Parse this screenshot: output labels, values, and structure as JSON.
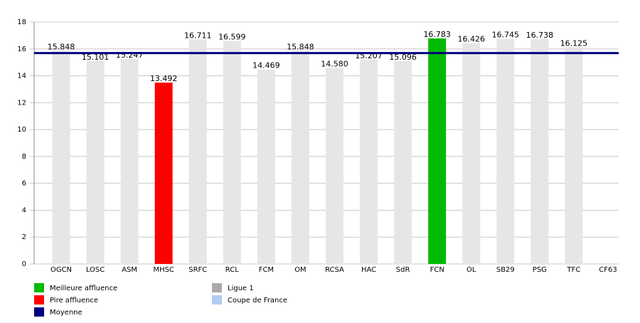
{
  "chart_data": {
    "type": "bar",
    "categories": [
      "OGCN",
      "LOSC",
      "ASM",
      "MHSC",
      "SRFC",
      "RCL",
      "FCM",
      "OM",
      "RCSA",
      "HAC",
      "SdR",
      "FCN",
      "OL",
      "SB29",
      "PSG",
      "TFC",
      "CF63"
    ],
    "values": [
      15.848,
      15.101,
      15.247,
      13.492,
      16.711,
      16.599,
      14.469,
      15.848,
      14.58,
      15.207,
      15.096,
      16.783,
      16.426,
      16.745,
      16.738,
      16.125,
      null
    ],
    "value_labels": [
      "15.848",
      "15.101",
      "15.247",
      "13.492",
      "16.711",
      "16.599",
      "14.469",
      "15.848",
      "14.580",
      "15.207",
      "15.096",
      "16.783",
      "16.426",
      "16.745",
      "16.738",
      "16.125",
      null
    ],
    "colors": [
      "#e6e6e6",
      "#e6e6e6",
      "#e6e6e6",
      "#ff0000",
      "#e6e6e6",
      "#e6e6e6",
      "#e6e6e6",
      "#e6e6e6",
      "#e6e6e6",
      "#e6e6e6",
      "#e6e6e6",
      "#00bb00",
      "#e6e6e6",
      "#e6e6e6",
      "#e6e6e6",
      "#e6e6e6",
      "#e6e6e6"
    ],
    "mean": 15.688,
    "mean_color": "#000080",
    "ylim": [
      0,
      18
    ],
    "yticks": [
      0,
      2,
      4,
      6,
      8,
      10,
      12,
      14,
      16,
      18
    ],
    "grid": true,
    "legend": [
      {
        "name": "Meilleure affluence",
        "color": "#00bb00"
      },
      {
        "name": "Pire affluence",
        "color": "#ff0000"
      },
      {
        "name": "Moyenne",
        "color": "#000080"
      },
      {
        "name": "Ligue 1",
        "color": "#aaaaaa"
      },
      {
        "name": "Coupe de France",
        "color": "#b0ccf0"
      }
    ]
  }
}
